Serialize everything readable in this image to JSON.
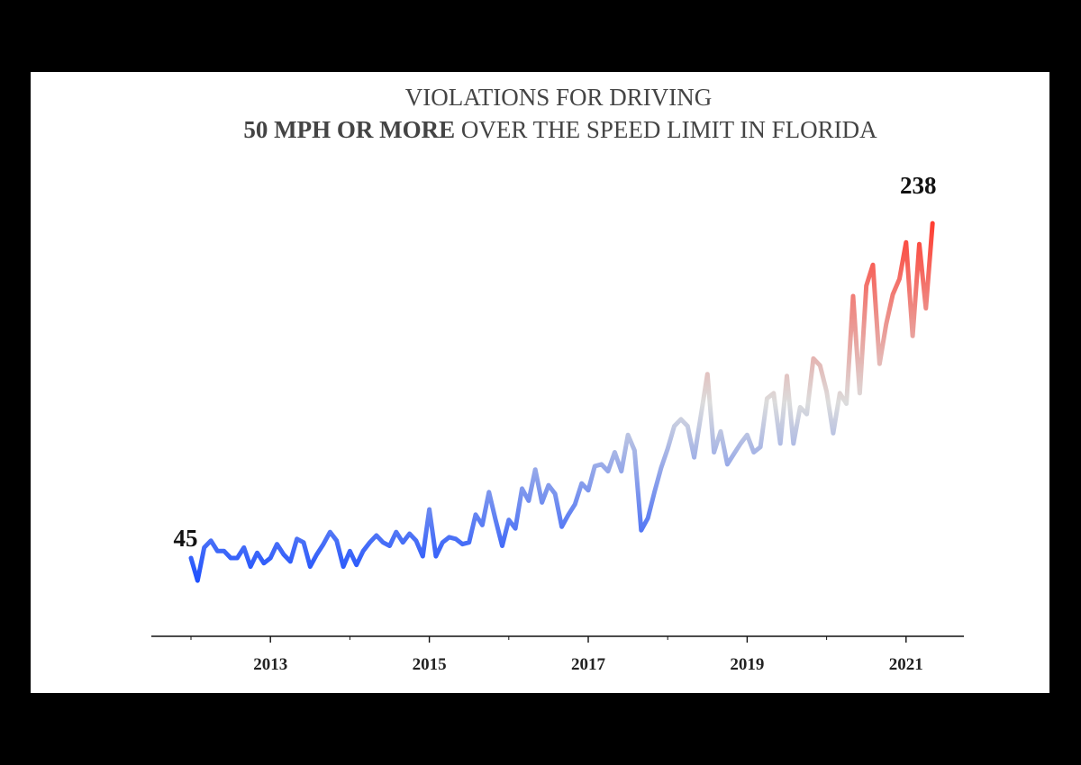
{
  "chart_data": {
    "type": "line",
    "title_line1": "VIOLATIONS FOR DRIVING",
    "title_line2_bold": "50 MPH OR MORE",
    "title_line2_rest": " OVER THE SPEED LIMIT IN FLORIDA",
    "xlabel": "",
    "ylabel": "",
    "x_start": "2012-01",
    "x_frequency": "monthly",
    "x_ticks": [
      "2013",
      "2015",
      "2017",
      "2019",
      "2021"
    ],
    "x_minor_ticks": [
      "2012",
      "2014",
      "2016",
      "2018",
      "2020"
    ],
    "values": [
      45,
      32,
      51,
      55,
      49,
      49,
      45,
      45,
      51,
      40,
      48,
      42,
      45,
      53,
      47,
      43,
      56,
      54,
      40,
      47,
      53,
      60,
      55,
      40,
      49,
      41,
      49,
      54,
      58,
      54,
      52,
      60,
      54,
      59,
      55,
      46,
      73,
      46,
      54,
      57,
      56,
      53,
      54,
      70,
      64,
      83,
      67,
      52,
      67,
      62,
      85,
      78,
      96,
      77,
      87,
      82,
      63,
      70,
      76,
      88,
      84,
      98,
      99,
      95,
      106,
      95,
      116,
      107,
      61,
      68,
      83,
      97,
      108,
      121,
      125,
      121,
      103,
      127,
      151,
      106,
      118,
      99,
      105,
      111,
      116,
      106,
      109,
      137,
      140,
      111,
      150,
      111,
      132,
      128,
      160,
      156,
      141,
      117,
      140,
      134,
      196,
      140,
      202,
      214,
      157,
      180,
      197,
      206,
      227,
      173,
      226,
      189,
      238
    ],
    "annotations": {
      "first": "45",
      "last": "238"
    },
    "colors": {
      "low": "#1a4dff",
      "mid": "#dcdcdc",
      "high": "#ff3b2f"
    },
    "y_axis_visible": false,
    "grid": false,
    "legend": "none"
  }
}
